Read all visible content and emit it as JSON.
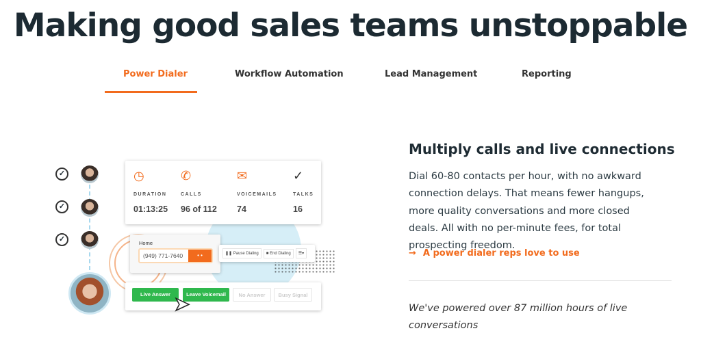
{
  "header": {
    "title": "Making good sales teams unstoppable"
  },
  "tabs": [
    {
      "label": "Power Dialer",
      "active": true
    },
    {
      "label": "Workflow Automation"
    },
    {
      "label": "Lead Management"
    },
    {
      "label": "Reporting"
    }
  ],
  "colors": {
    "accent": "#f26b1d",
    "green": "#2fb84d",
    "text": "#1e2b33"
  },
  "illustration": {
    "stats": [
      {
        "icon": "clock-icon",
        "label": "DURATION",
        "value": "01:13:25"
      },
      {
        "icon": "phone-icon",
        "label": "CALLS",
        "value": "96 of 112"
      },
      {
        "icon": "envelope-icon",
        "label": "VOICEMAILS",
        "value": "74"
      },
      {
        "icon": "check-circle-icon",
        "label": "TALKS",
        "value": "16"
      }
    ],
    "dialer": {
      "label": "Home",
      "phone": "(949) 771-7640",
      "dial_button": "• •"
    },
    "controls": {
      "pause": "Pause Dialing",
      "end": "End Dialing"
    },
    "outcomes": [
      "Live Answer",
      "Leave Voicemail",
      "No Answer",
      "Busy Signal"
    ]
  },
  "content": {
    "heading": "Multiply calls and live connections",
    "paragraph": "Dial 60-80 contacts per hour, with no awkward connection delays. That means fewer hangups, more quality conversations and more closed deals. All with no per-minute fees, for total prospecting freedom.",
    "link_arrow": "→",
    "link": "A power dialer reps love to use",
    "quote": "We've powered over 87 million hours of live conversations"
  }
}
